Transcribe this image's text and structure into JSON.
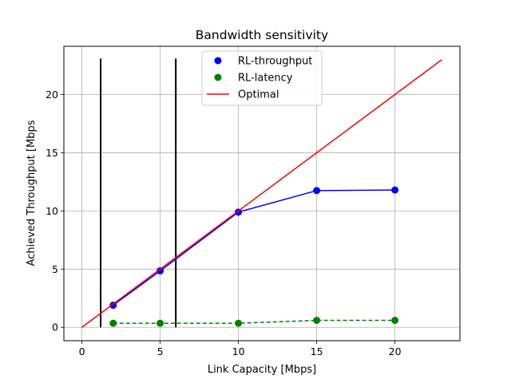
{
  "chart_data": {
    "type": "line",
    "title": "Bandwidth sensitivity",
    "xlabel": "Link Capacity [Mbps]",
    "ylabel": "Achieved Throughput [Mbps",
    "xlim": [
      -1.15,
      24.15
    ],
    "ylim": [
      -1.15,
      24.15
    ],
    "xticks": [
      0,
      5,
      10,
      15,
      20
    ],
    "yticks": [
      0,
      5,
      10,
      15,
      20
    ],
    "grid": true,
    "legend_position": "top-center",
    "series": [
      {
        "name": "RL-throughput",
        "color": "#0000ff",
        "marker": "circle",
        "line_style": "solid",
        "x": [
          2,
          5,
          10,
          15,
          20
        ],
        "y": [
          1.9,
          4.85,
          9.9,
          11.75,
          11.8
        ]
      },
      {
        "name": "RL-latency",
        "color": "#008000",
        "marker": "circle",
        "line_style": "dashed",
        "x": [
          2,
          5,
          10,
          15,
          20
        ],
        "y": [
          0.35,
          0.35,
          0.35,
          0.6,
          0.6
        ]
      },
      {
        "name": "Optimal",
        "color": "#ff0000",
        "marker": "none",
        "line_style": "solid",
        "x": [
          0,
          23
        ],
        "y": [
          0,
          23
        ]
      }
    ],
    "vertical_lines": [
      {
        "x": 1.2,
        "y_from": 0,
        "y_to": 23.1,
        "color": "#000000"
      },
      {
        "x": 6.0,
        "y_from": 0,
        "y_to": 23.1,
        "color": "#000000"
      }
    ]
  }
}
